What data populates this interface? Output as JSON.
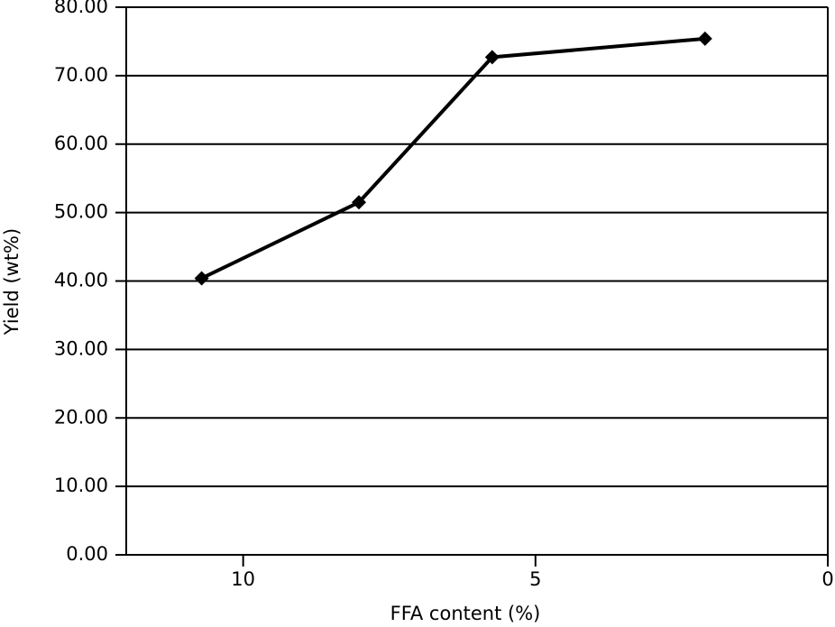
{
  "chart_data": {
    "type": "line",
    "x_label": "FFA content (%)",
    "y_label": "Yield (wt%)",
    "x": [
      10.71,
      8.02,
      5.74,
      2.1
    ],
    "series": [
      {
        "name": "Yield",
        "color": "#000000",
        "values": [
          40.4,
          51.5,
          72.7,
          75.4
        ]
      }
    ],
    "xlim": [
      12,
      0
    ],
    "xticks": [
      10,
      5,
      0
    ],
    "ylim": [
      0,
      80
    ],
    "yticks": [
      {
        "value": 0,
        "label": "0.00"
      },
      {
        "value": 10,
        "label": "10.00"
      },
      {
        "value": 20,
        "label": "20.00"
      },
      {
        "value": 30,
        "label": "30.00"
      },
      {
        "value": 40,
        "label": "40.00"
      },
      {
        "value": 50,
        "label": "50.00"
      },
      {
        "value": 60,
        "label": "60.00"
      },
      {
        "value": 70,
        "label": "70.00"
      },
      {
        "value": 80,
        "label": "80.00"
      }
    ],
    "grid": true
  }
}
